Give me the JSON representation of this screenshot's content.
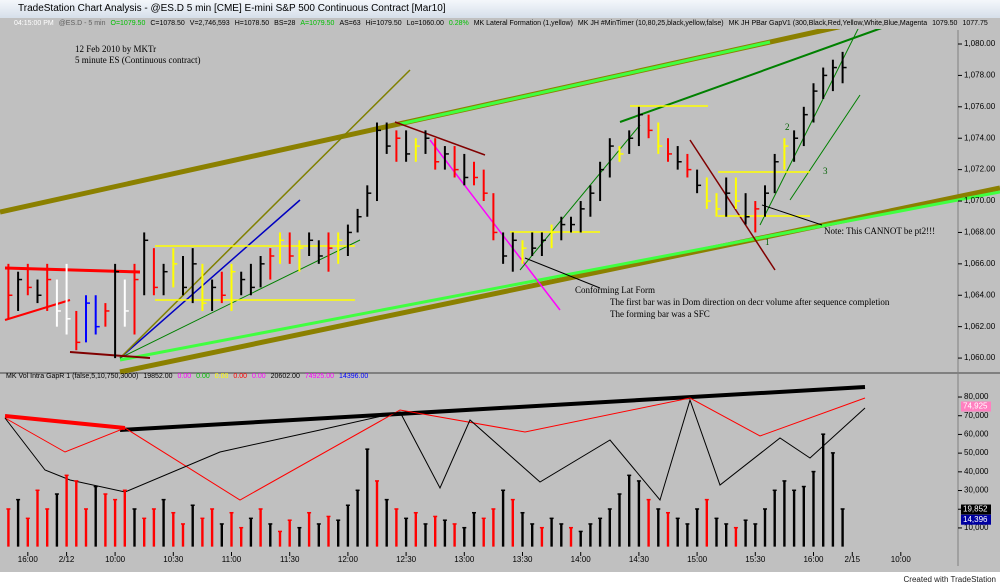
{
  "window": {
    "title": "TradeStation Chart Analysis - @ES.D 5 min [CME] E-mini S&P 500 Continuous Contract [Mar10]",
    "footer": "Created with TradeStation"
  },
  "status_line": [
    {
      "label": "04:15:00 PM",
      "color": "#ffffff"
    },
    {
      "label": "@ES.D - 5 min",
      "color": "#606060"
    },
    {
      "label": "O=1079.50",
      "color": "#00c000"
    },
    {
      "label": "C=1078.50",
      "color": "#000000"
    },
    {
      "label": "V=2,746,593",
      "color": "#000000"
    },
    {
      "label": "H=1078.50",
      "color": "#000000"
    },
    {
      "label": "BS=28",
      "color": "#000000"
    },
    {
      "label": "A=1079.50",
      "color": "#00c000"
    },
    {
      "label": "AS=63",
      "color": "#000000"
    },
    {
      "label": "Hi=1079.50",
      "color": "#000000"
    },
    {
      "label": "Lo=1060.00",
      "color": "#000000"
    },
    {
      "label": "0.28%",
      "color": "#00c000"
    },
    {
      "label": "MK Lateral Formation (1,yellow)",
      "color": "#000000"
    },
    {
      "label": "MK JH #MinTimer (10,80,25,black,yellow,false)",
      "color": "#000000"
    },
    {
      "label": "MK JH PBar GapV1 (300,Black,Red,Yellow,White,Blue,Magenta",
      "color": "#000000"
    },
    {
      "label": "1079.50",
      "color": "#000000"
    },
    {
      "label": "1077.75",
      "color": "#000000"
    }
  ],
  "chart_data": [
    {
      "type": "ohlc",
      "annotations": [
        "12 Feb 2010 by MKTr",
        "5 minute ES (Continuous contract)",
        "Conforming Lat Form",
        "The first bar was in Dom direction on decr volume after sequence completion",
        "The forming bar was a SFC",
        "Note: This CANNOT be pt2!!!",
        "2",
        "3",
        "1"
      ],
      "categories": [
        null,
        null,
        "16:00",
        null,
        null,
        null,
        "2/12",
        null,
        null,
        null,
        null,
        "10:00",
        null,
        null,
        null,
        null,
        null,
        "10:30",
        null,
        null,
        null,
        null,
        null,
        "11:00",
        null,
        null,
        null,
        null,
        null,
        "11:30",
        null,
        null,
        null,
        null,
        null,
        "12:00",
        null,
        null,
        null,
        null,
        null,
        "12:30",
        null,
        null,
        null,
        null,
        null,
        "13:00",
        null,
        null,
        null,
        null,
        null,
        "13:30",
        null,
        null,
        null,
        null,
        null,
        "14:00",
        null,
        null,
        null,
        null,
        null,
        "14:30",
        null,
        null,
        null,
        null,
        null,
        "15:00",
        null,
        null,
        null,
        null,
        null,
        "15:30",
        null,
        null,
        null,
        null,
        null,
        "16:00",
        null,
        null,
        null,
        "2/15",
        null,
        null,
        null,
        null,
        "10:00",
        null,
        null,
        null
      ],
      "high": [
        1066,
        1065.5,
        1066,
        1065,
        1066,
        1065,
        1066,
        1063,
        1064,
        1064,
        1063.5,
        1066,
        1065,
        1066,
        1068,
        1067,
        1066,
        1067,
        1066.5,
        1067,
        1066,
        1065,
        1065.5,
        1066,
        1065.5,
        1066,
        1066.5,
        1067,
        1068,
        1068,
        1067.5,
        1068,
        1067.5,
        1068,
        1068,
        1068.5,
        1069.5,
        1071,
        1075,
        1075,
        1074.5,
        1074.5,
        1074,
        1074.5,
        1074,
        1073.5,
        1073.5,
        1073,
        1072.5,
        1072,
        1070.5,
        1068,
        1068,
        1067.5,
        1068,
        1068,
        1068.5,
        1069,
        1069,
        1070,
        1071,
        1072.5,
        1074,
        1073.5,
        1074.5,
        1076,
        1075.5,
        1075,
        1074,
        1073.5,
        1073,
        1072,
        1071.5,
        1070.5,
        1071.5,
        1071.5,
        1070.5,
        1070,
        1071,
        1073,
        1074,
        1074.5,
        1076,
        1077.5,
        1078.5,
        1079,
        1079.5,
        null,
        null,
        null,
        null,
        null,
        null,
        null,
        null,
        null
      ],
      "low": [
        1062.5,
        1063,
        1064,
        1063.5,
        1063,
        1062,
        1061.5,
        1060.5,
        1061,
        1061.5,
        1062,
        1060,
        1062,
        1061.5,
        1064,
        1064,
        1064,
        1064.5,
        1064,
        1063.5,
        1063,
        1063,
        1063.5,
        1063,
        1064,
        1064,
        1064.5,
        1065,
        1066,
        1066,
        1065.5,
        1066.5,
        1066,
        1065.5,
        1066,
        1066.5,
        1068,
        1069,
        1070,
        1073,
        1072.5,
        1072.5,
        1072.5,
        1073,
        1072,
        1072,
        1071.5,
        1071,
        1071,
        1070,
        1067.5,
        1066,
        1065.5,
        1066,
        1066.5,
        1066.5,
        1067,
        1067.5,
        1068,
        1068,
        1069,
        1070,
        1071.5,
        1072.5,
        1073,
        1073.5,
        1074,
        1073,
        1072.5,
        1072,
        1071.5,
        1070.5,
        1069.5,
        1069,
        1069,
        1069.5,
        1068.5,
        1068,
        1069,
        1070.5,
        1072,
        1072.5,
        1073.5,
        1075,
        1076.5,
        1077,
        1077.5,
        null,
        null,
        null,
        null,
        null,
        null,
        null,
        null,
        null
      ],
      "close": [
        1064,
        1065,
        1064.5,
        1064,
        1065,
        1063,
        1062.5,
        1061,
        1063.5,
        1062,
        1063,
        1065.5,
        1063,
        1065,
        1067.5,
        1064.5,
        1065.5,
        1066,
        1064.5,
        1066,
        1063.5,
        1064.5,
        1064,
        1065.5,
        1065,
        1064.5,
        1066,
        1066.5,
        1067.5,
        1066.5,
        1067,
        1067.5,
        1066.5,
        1067,
        1067.5,
        1068,
        1069,
        1070.5,
        1074.5,
        1073.5,
        1074,
        1073,
        1073.5,
        1074,
        1072.5,
        1073,
        1072,
        1071.5,
        1071.5,
        1070.5,
        1068,
        1066.5,
        1067.5,
        1067,
        1067,
        1067.5,
        1068,
        1068.5,
        1068.5,
        1069.5,
        1070.5,
        1072,
        1073.5,
        1073,
        1074,
        1075.5,
        1074.5,
        1073.5,
        1073,
        1072.5,
        1072,
        1071,
        1070,
        1069.5,
        1070.5,
        1070,
        1069,
        1069.5,
        1070.5,
        1072.5,
        1073.5,
        1074,
        1075.5,
        1077,
        1078,
        1078.5,
        1078.5,
        null,
        null,
        null,
        null,
        null,
        null,
        null,
        null,
        null
      ],
      "bar_colors": [
        "#ff0000",
        "#000000",
        "#ff0000",
        "#000000",
        "#ff0000",
        "#ffffff",
        "#ffffff",
        "#ff0000",
        "#0000ff",
        "#0000ff",
        "#ff0000",
        "#000000",
        "#ffffff",
        "#ff0000",
        "#000000",
        "#ff0000",
        "#000000",
        "#ffff00",
        "#000000",
        "#000000",
        "#ffff00",
        "#000000",
        "#ff0000",
        "#ffff00",
        "#000000",
        "#000000",
        "#000000",
        "#ff0000",
        "#ffff00",
        "#ff0000",
        "#ffff00",
        "#000000",
        "#000000",
        "#ff0000",
        "#ffff00",
        "#000000",
        "#000000",
        "#000000",
        "#000000",
        "#000000",
        "#ff0000",
        "#000000",
        "#ffff00",
        "#000000",
        "#ff0000",
        "#000000",
        "#ff0000",
        "#000000",
        "#ff0000",
        "#ff0000",
        "#ff0000",
        "#000000",
        "#000000",
        "#ffff00",
        "#000000",
        "#000000",
        "#ffff00",
        "#000000",
        "#000000",
        "#000000",
        "#000000",
        "#000000",
        "#000000",
        "#ffff00",
        "#000000",
        "#000000",
        "#ff0000",
        "#ffff00",
        "#ff0000",
        "#000000",
        "#ff0000",
        "#000000",
        "#ffff00",
        "#ffff00",
        "#000000",
        "#ffff00",
        "#000000",
        "#ff0000",
        "#000000",
        "#000000",
        "#ffff00",
        "#000000",
        "#000000",
        "#000000",
        "#000000",
        "#000000",
        "#000000",
        null,
        null,
        null,
        null,
        null,
        null,
        null,
        null,
        null
      ],
      "ylim": [
        1059.24,
        1081.21
      ],
      "yticks": [
        {
          "value": 1080,
          "label": "1,080.00"
        },
        {
          "value": 1078,
          "label": "1,078.00"
        },
        {
          "value": 1076,
          "label": "1,076.00"
        },
        {
          "value": 1074,
          "label": "1,074.00"
        },
        {
          "value": 1072,
          "label": "1,072.00"
        },
        {
          "value": 1070,
          "label": "1,070.00"
        },
        {
          "value": 1068,
          "label": "1,068.00"
        },
        {
          "value": 1066,
          "label": "1,066.00"
        },
        {
          "value": 1064,
          "label": "1,064.00"
        },
        {
          "value": 1062,
          "label": "1,062.00"
        },
        {
          "value": 1060,
          "label": "1,060.00"
        }
      ]
    },
    {
      "type": "bar",
      "title": "MK Vol Intra GapR 1 (false,5,10,750,3000)",
      "legend": [
        {
          "label": "19852.00",
          "color": "#000000"
        },
        {
          "label": "0.00",
          "color": "#ff00ff"
        },
        {
          "label": "0.00",
          "color": "#00c000"
        },
        {
          "label": "0.00",
          "color": "#ffff00"
        },
        {
          "label": "0.00",
          "color": "#ff0000"
        },
        {
          "label": "0.00",
          "color": "#ff00ff"
        },
        {
          "label": "20602.00",
          "color": "#000000"
        },
        {
          "label": "74925.00",
          "color": "#ff00ff"
        },
        {
          "label": "14396.00",
          "color": "#0000ff"
        }
      ],
      "values": [
        20000,
        25000,
        15000,
        30000,
        20000,
        28000,
        38000,
        35000,
        20000,
        32000,
        28000,
        25000,
        30000,
        20000,
        15000,
        20000,
        25000,
        18000,
        12000,
        22000,
        15000,
        20000,
        12000,
        18000,
        10000,
        15000,
        20000,
        12000,
        8000,
        14000,
        10000,
        18000,
        12000,
        16000,
        14000,
        22000,
        30000,
        52000,
        35000,
        25000,
        20000,
        15000,
        18000,
        12000,
        16000,
        14000,
        12000,
        10000,
        18000,
        15000,
        20000,
        30000,
        25000,
        18000,
        12000,
        10000,
        15000,
        12000,
        10000,
        8000,
        12000,
        15000,
        20000,
        28000,
        38000,
        35000,
        25000,
        20000,
        18000,
        15000,
        12000,
        20000,
        25000,
        15000,
        12000,
        10000,
        14000,
        12000,
        20000,
        30000,
        35000,
        30000,
        32000,
        40000,
        60000,
        50000,
        20000,
        null,
        null,
        null,
        null,
        null,
        null,
        null,
        null,
        null
      ],
      "colors": [
        "#ff0000",
        "#000000",
        "#ff0000",
        "#ff0000",
        "#ff0000",
        "#000000",
        "#ff0000",
        "#ff0000",
        "#ff0000",
        "#000000",
        "#ff0000",
        "#ff0000",
        "#ff0000",
        "#000000",
        "#ff0000",
        "#ff0000",
        "#000000",
        "#ff0000",
        "#ff0000",
        "#000000",
        "#ff0000",
        "#ff0000",
        "#000000",
        "#ff0000",
        "#ff0000",
        "#000000",
        "#ff0000",
        "#000000",
        "#ff0000",
        "#ff0000",
        "#000000",
        "#ff0000",
        "#000000",
        "#ff0000",
        "#000000",
        "#000000",
        "#000000",
        "#000000",
        "#ff0000",
        "#000000",
        "#ff0000",
        "#000000",
        "#ff0000",
        "#000000",
        "#ff0000",
        "#000000",
        "#ff0000",
        "#000000",
        "#000000",
        "#ff0000",
        "#ff0000",
        "#000000",
        "#ff0000",
        "#000000",
        "#000000",
        "#ff0000",
        "#000000",
        "#000000",
        "#ff0000",
        "#000000",
        "#000000",
        "#000000",
        "#000000",
        "#000000",
        "#000000",
        "#000000",
        "#ff0000",
        "#000000",
        "#ff0000",
        "#000000",
        "#000000",
        "#000000",
        "#ff0000",
        "#000000",
        "#000000",
        "#ff0000",
        "#000000",
        "#000000",
        "#000000",
        "#000000",
        "#000000",
        "#000000",
        "#000000",
        "#000000",
        "#000000",
        "#000000",
        "#000000",
        null,
        null,
        null,
        null,
        null,
        null,
        null,
        null,
        null
      ],
      "ylim": [
        -1800,
        87500
      ],
      "yticks": [
        {
          "value": 80000,
          "label": "80,000"
        },
        {
          "value": 70000,
          "label": "70,000"
        },
        {
          "value": 60000,
          "label": "60,000"
        },
        {
          "value": 50000,
          "label": "50,000"
        },
        {
          "value": 40000,
          "label": "40,000"
        },
        {
          "value": 30000,
          "label": "30,000"
        },
        {
          "value": 20000,
          "label": "20,000"
        },
        {
          "value": 10000,
          "label": "10,000"
        }
      ],
      "current_values": [
        {
          "value": 74925,
          "label": "74,925",
          "color": "#ff80c0"
        },
        {
          "value": 19852,
          "label": "19,852",
          "color": "#000000"
        },
        {
          "value": 14396,
          "label": "14,396",
          "color": "#0000a0"
        }
      ]
    }
  ]
}
